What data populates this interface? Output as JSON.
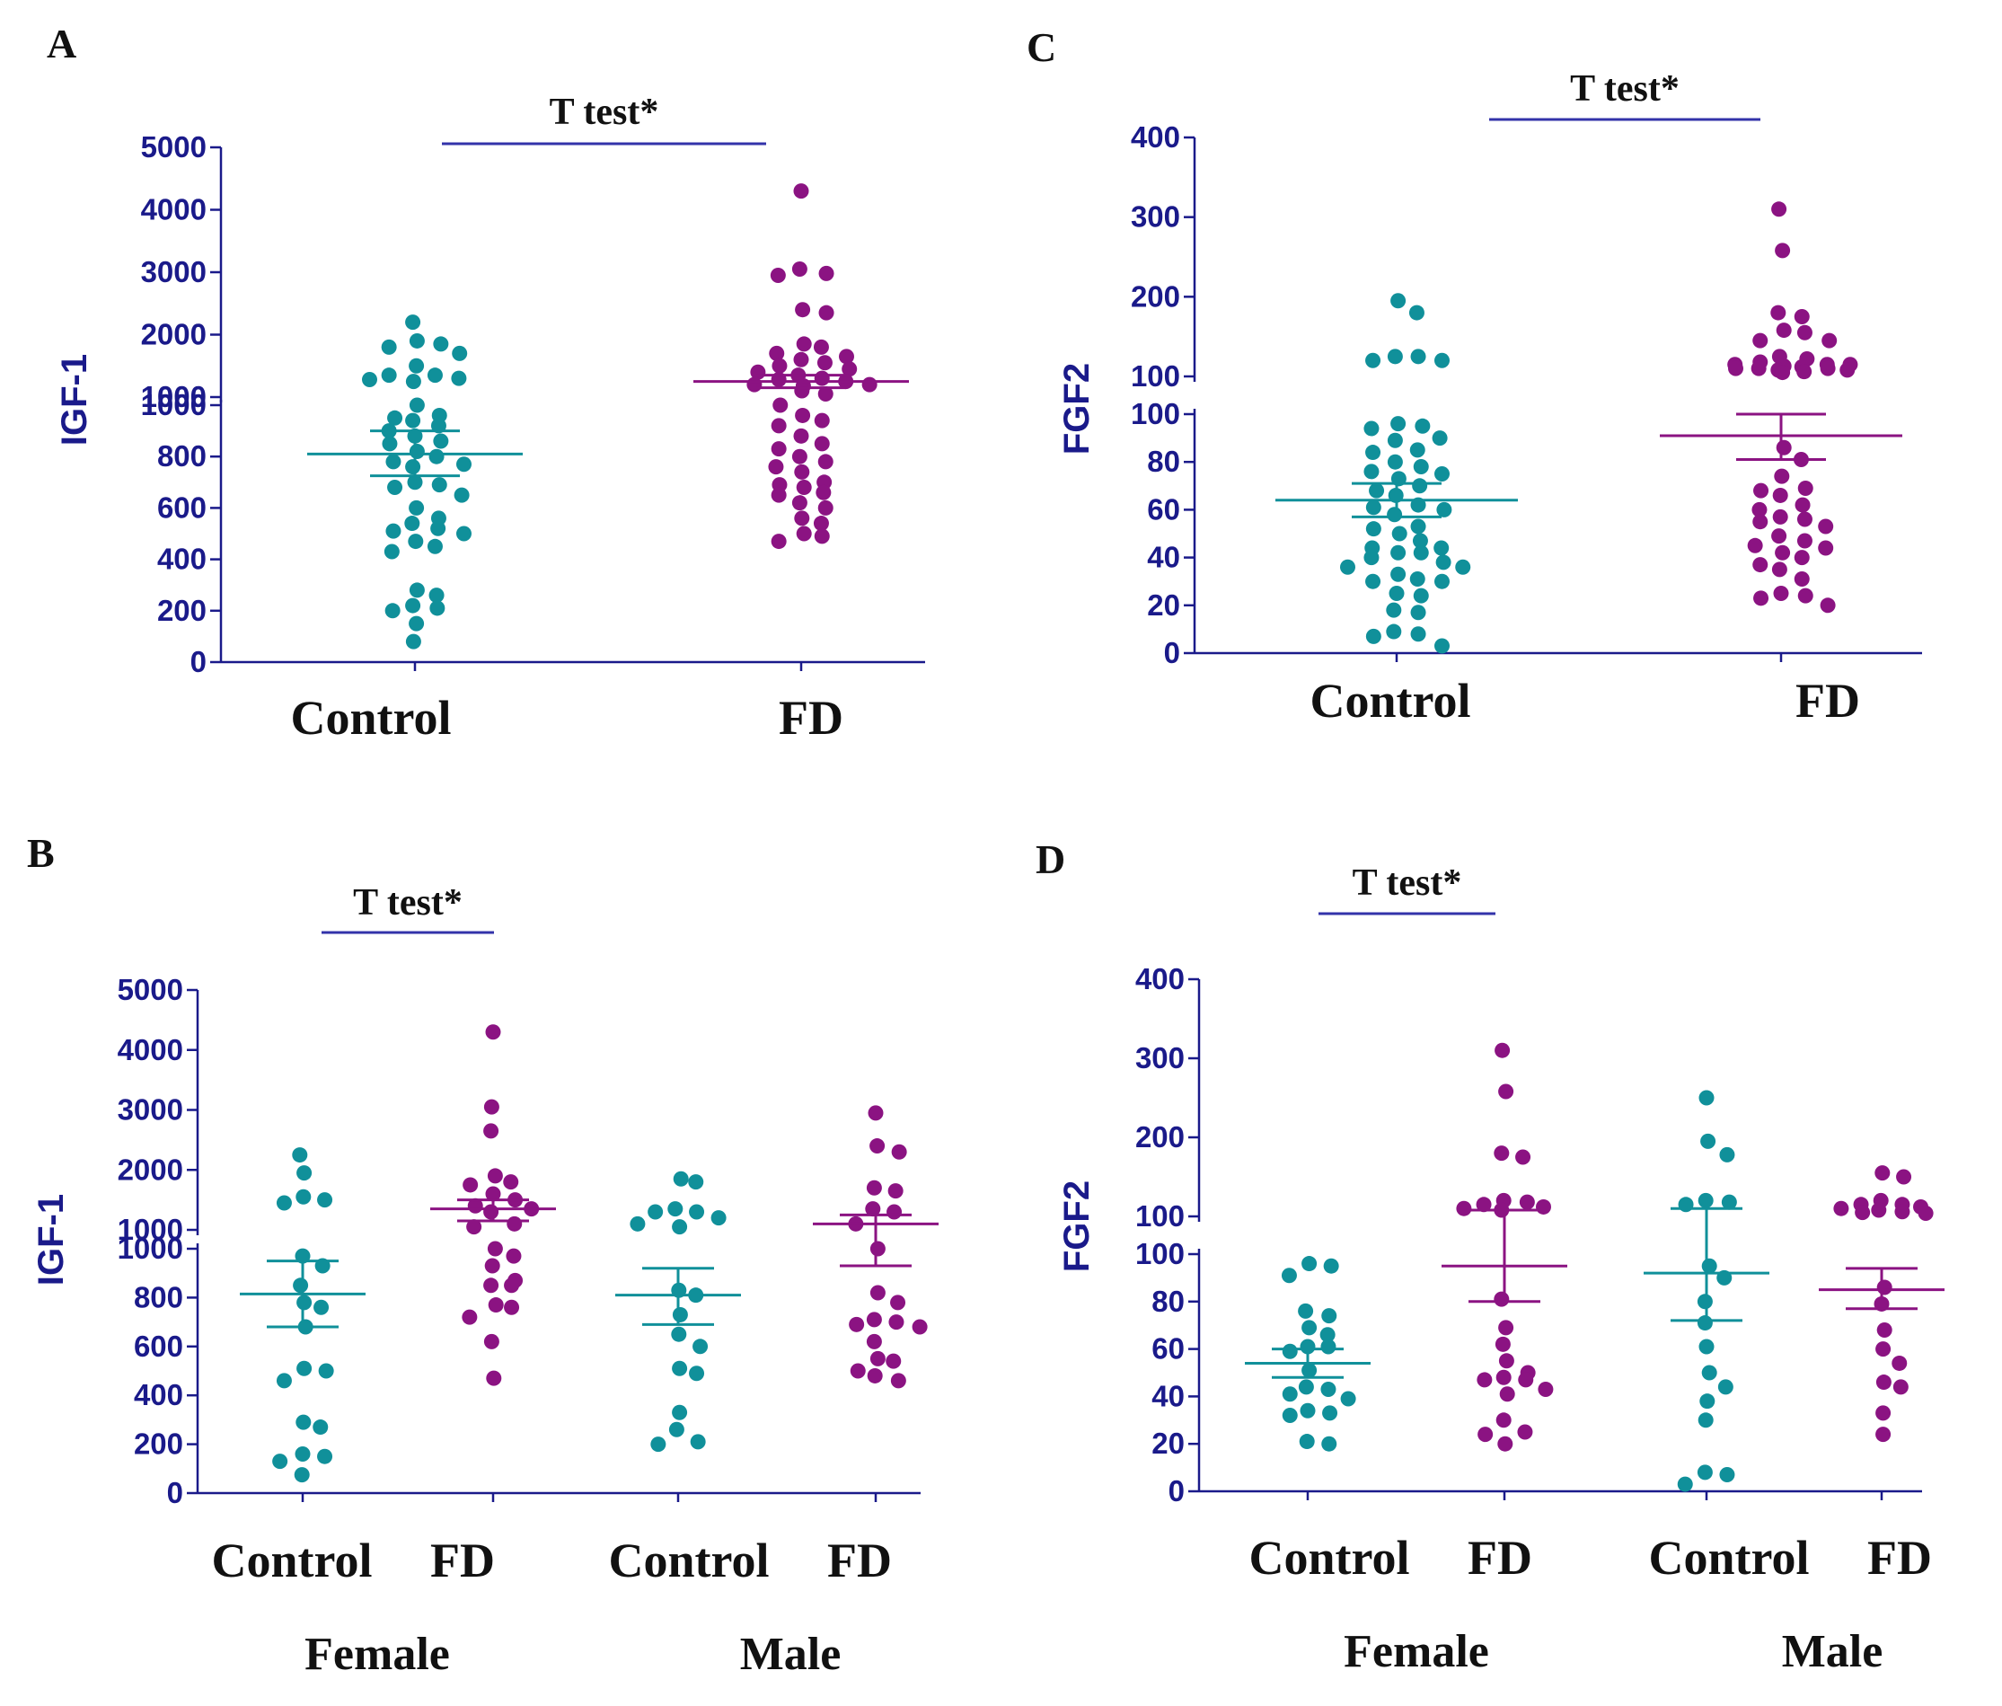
{
  "colors": {
    "control": "#10909a",
    "fd": "#8b1382",
    "axis": "#1a1a8a",
    "sig": "#3333aa",
    "text": "#111111"
  },
  "chart_data": [
    {
      "id": "A",
      "panel": "A",
      "type": "scatter",
      "ylabel": "IGF-1",
      "axis_break": {
        "lower_ylim": [
          0,
          1000
        ],
        "upper_ylim": [
          1000,
          5000
        ]
      },
      "lower_ticks": [
        0,
        200,
        400,
        600,
        800,
        1000
      ],
      "upper_ticks": [
        1000,
        2000,
        3000,
        4000,
        5000
      ],
      "categories": [
        "Control",
        "FD"
      ],
      "groups": [],
      "significance": [
        {
          "label": "T test*",
          "from": 0,
          "to": 1
        }
      ],
      "series": [
        {
          "name": "Control",
          "color_key": "control",
          "mean": 810,
          "sem_low": 725,
          "sem_high": 900,
          "values": [
            2200,
            1900,
            1850,
            1800,
            1700,
            1500,
            1350,
            1350,
            1300,
            1280,
            1250,
            1000,
            960,
            950,
            940,
            920,
            900,
            880,
            860,
            850,
            820,
            800,
            780,
            770,
            760,
            700,
            690,
            680,
            650,
            600,
            560,
            540,
            520,
            510,
            500,
            470,
            450,
            430,
            280,
            260,
            220,
            210,
            200,
            150,
            80
          ]
        },
        {
          "name": "FD",
          "color_key": "fd",
          "mean": 1250,
          "sem_low": 1150,
          "sem_high": 1350,
          "values": [
            4300,
            3050,
            2980,
            2950,
            2400,
            2350,
            1850,
            1800,
            1700,
            1650,
            1600,
            1550,
            1500,
            1450,
            1400,
            1350,
            1300,
            1280,
            1250,
            1200,
            1200,
            1180,
            1100,
            1050,
            1000,
            960,
            940,
            920,
            880,
            850,
            830,
            800,
            780,
            760,
            740,
            700,
            690,
            680,
            660,
            650,
            620,
            600,
            560,
            540,
            500,
            490,
            470
          ]
        }
      ]
    },
    {
      "id": "C",
      "panel": "C",
      "type": "scatter",
      "ylabel": "FGF2",
      "axis_break": {
        "lower_ylim": [
          0,
          100
        ],
        "upper_ylim": [
          100,
          400
        ]
      },
      "lower_ticks": [
        0,
        20,
        40,
        60,
        80,
        100
      ],
      "upper_ticks": [
        100,
        200,
        300,
        400
      ],
      "categories": [
        "Control",
        "FD"
      ],
      "groups": [],
      "significance": [
        {
          "label": "T test*",
          "from": 0,
          "to": 1
        }
      ],
      "series": [
        {
          "name": "Control",
          "color_key": "control",
          "mean": 64,
          "sem_low": 57,
          "sem_high": 71,
          "values": [
            195,
            180,
            125,
            125,
            120,
            120,
            96,
            95,
            94,
            90,
            89,
            85,
            84,
            80,
            78,
            76,
            75,
            73,
            70,
            68,
            66,
            62,
            61,
            60,
            58,
            53,
            52,
            50,
            47,
            44,
            44,
            42,
            42,
            40,
            38,
            36,
            36,
            33,
            31,
            30,
            30,
            25,
            24,
            18,
            17,
            9,
            8,
            7,
            3
          ]
        },
        {
          "name": "FD",
          "color_key": "fd",
          "mean": 91,
          "sem_low": 81,
          "sem_high": 100,
          "values": [
            310,
            258,
            180,
            175,
            158,
            155,
            145,
            145,
            125,
            122,
            118,
            115,
            115,
            115,
            113,
            112,
            110,
            110,
            110,
            108,
            108,
            106,
            105,
            86,
            81,
            74,
            69,
            68,
            66,
            62,
            60,
            57,
            56,
            55,
            53,
            49,
            47,
            45,
            44,
            42,
            40,
            37,
            35,
            31,
            25,
            24,
            23,
            20
          ]
        }
      ]
    },
    {
      "id": "B",
      "panel": "B",
      "type": "scatter",
      "ylabel": "IGF-1",
      "axis_break": {
        "lower_ylim": [
          0,
          1000
        ],
        "upper_ylim": [
          1000,
          5000
        ]
      },
      "lower_ticks": [
        0,
        200,
        400,
        600,
        800,
        1000
      ],
      "upper_ticks": [
        1000,
        2000,
        3000,
        4000,
        5000
      ],
      "categories": [
        "Control",
        "FD",
        "Control",
        "FD"
      ],
      "groups": [
        {
          "label": "Female",
          "from": 0,
          "to": 1
        },
        {
          "label": "Male",
          "from": 2,
          "to": 3
        }
      ],
      "significance": [
        {
          "label": "T test*",
          "from": 0,
          "to": 1
        }
      ],
      "series": [
        {
          "name": "Female Control",
          "color_key": "control",
          "mean": 815,
          "sem_low": 680,
          "sem_high": 950,
          "values": [
            2250,
            1950,
            1550,
            1500,
            1450,
            970,
            930,
            850,
            780,
            760,
            680,
            510,
            500,
            460,
            290,
            270,
            160,
            150,
            130,
            75
          ]
        },
        {
          "name": "Female FD",
          "color_key": "fd",
          "mean": 1350,
          "sem_low": 1150,
          "sem_high": 1500,
          "values": [
            4300,
            3050,
            2650,
            1900,
            1800,
            1750,
            1600,
            1500,
            1400,
            1350,
            1300,
            1100,
            1050,
            1000,
            970,
            930,
            870,
            850,
            850,
            770,
            760,
            720,
            620,
            470
          ]
        },
        {
          "name": "Male Control",
          "color_key": "control",
          "mean": 810,
          "sem_low": 690,
          "sem_high": 920,
          "values": [
            1850,
            1800,
            1350,
            1300,
            1300,
            1200,
            1100,
            1050,
            830,
            810,
            730,
            650,
            600,
            510,
            490,
            330,
            260,
            210,
            200
          ]
        },
        {
          "name": "Male FD",
          "color_key": "fd",
          "mean": 1100,
          "sem_low": 930,
          "sem_high": 1250,
          "values": [
            2950,
            2400,
            2300,
            1700,
            1650,
            1350,
            1300,
            1100,
            1000,
            820,
            780,
            710,
            700,
            690,
            680,
            620,
            550,
            540,
            500,
            480,
            460
          ]
        }
      ]
    },
    {
      "id": "D",
      "panel": "D",
      "type": "scatter",
      "ylabel": "FGF2",
      "axis_break": {
        "lower_ylim": [
          0,
          100
        ],
        "upper_ylim": [
          100,
          400
        ]
      },
      "lower_ticks": [
        0,
        20,
        40,
        60,
        80,
        100
      ],
      "upper_ticks": [
        100,
        200,
        300,
        400
      ],
      "categories": [
        "Control",
        "FD",
        "Control",
        "FD"
      ],
      "groups": [
        {
          "label": "Female",
          "from": 0,
          "to": 1
        },
        {
          "label": "Male",
          "from": 2,
          "to": 3
        }
      ],
      "significance": [
        {
          "label": "T test*",
          "from": 0,
          "to": 1
        }
      ],
      "series": [
        {
          "name": "Female Control",
          "color_key": "control",
          "mean": 54,
          "sem_low": 48,
          "sem_high": 60,
          "values": [
            96,
            95,
            91,
            76,
            74,
            69,
            66,
            61,
            61,
            59,
            51,
            44,
            43,
            41,
            39,
            34,
            33,
            32,
            21,
            20
          ]
        },
        {
          "name": "Female FD",
          "color_key": "fd",
          "mean": 95,
          "sem_low": 80,
          "sem_high": 108,
          "values": [
            310,
            258,
            180,
            175,
            120,
            118,
            115,
            112,
            110,
            108,
            81,
            69,
            62,
            55,
            50,
            48,
            47,
            47,
            43,
            41,
            30,
            25,
            24,
            20
          ]
        },
        {
          "name": "Male Control",
          "color_key": "control",
          "mean": 92,
          "sem_low": 72,
          "sem_high": 110,
          "values": [
            250,
            195,
            178,
            120,
            118,
            115,
            95,
            90,
            80,
            71,
            61,
            50,
            44,
            38,
            30,
            8,
            7,
            3
          ]
        },
        {
          "name": "Male FD",
          "color_key": "fd",
          "mean": 85,
          "sem_low": 77,
          "sem_high": 94,
          "values": [
            155,
            150,
            120,
            115,
            115,
            112,
            110,
            108,
            106,
            105,
            104,
            86,
            79,
            68,
            60,
            54,
            46,
            44,
            33,
            24
          ]
        }
      ]
    }
  ]
}
